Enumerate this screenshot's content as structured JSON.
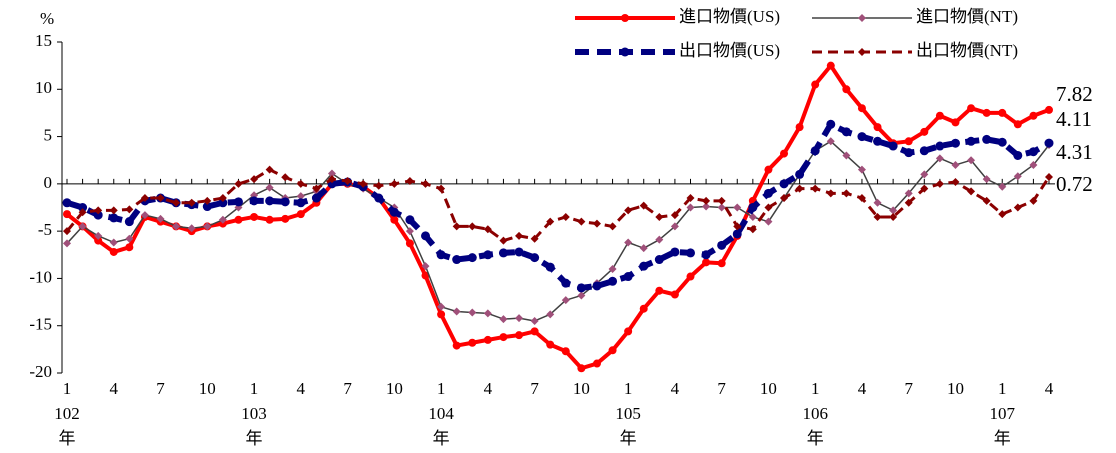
{
  "chart_data": {
    "type": "line",
    "y_label": "%",
    "categories": [
      "1",
      null,
      null,
      "4",
      null,
      null,
      "7",
      null,
      null,
      "10",
      null,
      null,
      "1",
      null,
      null,
      "4",
      null,
      null,
      "7",
      null,
      null,
      "10",
      null,
      null,
      "1",
      null,
      null,
      "4",
      null,
      null,
      "7",
      null,
      null,
      "10",
      null,
      null,
      "1",
      null,
      null,
      "4",
      null,
      null,
      "7",
      null,
      null,
      "10",
      null,
      null,
      "1",
      null,
      null,
      "4",
      null,
      null,
      "7",
      null,
      null,
      "10",
      null,
      null,
      "1",
      null,
      null,
      "4"
    ],
    "years": [
      "102",
      "103",
      "104",
      "105",
      "106",
      "107"
    ],
    "year_unit": "年",
    "ylim": [
      -20,
      15
    ],
    "yticks": [
      -20,
      -15,
      -10,
      -5,
      0,
      5,
      10,
      15
    ],
    "series": [
      {
        "name": "進口物價(US)",
        "color": "#ff0000",
        "marker": "circle",
        "dash": "solid",
        "line_width": 4,
        "values": [
          -3.2,
          -4.5,
          -6,
          -7.2,
          -6.7,
          -3.5,
          -4,
          -4.5,
          -5,
          -4.5,
          -4.2,
          -3.8,
          -3.5,
          -3.8,
          -3.7,
          -3.2,
          -2,
          0,
          0,
          -0.3,
          -1.5,
          -3.8,
          -6.3,
          -9.7,
          -13.8,
          -17.1,
          -16.8,
          -16.5,
          -16.2,
          -16,
          -15.6,
          -17,
          -17.7,
          -19.5,
          -19,
          -17.6,
          -15.6,
          -13.2,
          -11.3,
          -11.7,
          -9.8,
          -8.3,
          -8.4,
          -5.5,
          -1.8,
          1.5,
          3.2,
          6,
          10.5,
          12.5,
          10,
          8,
          6,
          4.3,
          4.5,
          5.5,
          7.2,
          6.5,
          8,
          7.5,
          7.5,
          6.3,
          7.2,
          7.82
        ]
      },
      {
        "name": "進口物價(NT)",
        "color": "#404040",
        "marker_color": "#a0507a",
        "marker": "diamond",
        "dash": "solid",
        "line_width": 1.5,
        "values": [
          -6.3,
          -4.5,
          -5.5,
          -6.2,
          -5.8,
          -3.3,
          -3.7,
          -4.5,
          -4.7,
          -4.5,
          -3.8,
          -2.5,
          -1.2,
          -0.4,
          -1.5,
          -1.3,
          -0.8,
          1.1,
          0,
          -0.5,
          -1.5,
          -2.5,
          -5,
          -8.7,
          -13,
          -13.5,
          -13.6,
          -13.7,
          -14.3,
          -14.2,
          -14.5,
          -13.8,
          -12.3,
          -11.8,
          -10.5,
          -9,
          -6.2,
          -6.8,
          -5.9,
          -4.5,
          -2.5,
          -2.4,
          -2.5,
          -2.5,
          -3.5,
          -4,
          -1.5,
          1,
          3.5,
          4.5,
          3,
          1.5,
          -2,
          -2.8,
          -1,
          1,
          2.7,
          2,
          2.5,
          0.5,
          -0.3,
          0.8,
          2,
          4.11
        ]
      },
      {
        "name": "出口物價(US)",
        "color": "#000080",
        "marker": "circle",
        "dash": "dash",
        "line_width": 6,
        "values": [
          -2,
          -2.5,
          -3.3,
          -3.6,
          -4,
          -1.8,
          -1.5,
          -2,
          -2.2,
          -2.4,
          -2,
          -1.9,
          -1.8,
          -1.8,
          -1.9,
          -2,
          -1.5,
          0,
          0.2,
          -0.3,
          -1.5,
          -3,
          -3.8,
          -5.5,
          -7.5,
          -8,
          -7.8,
          -7.5,
          -7.3,
          -7.2,
          -7.8,
          -8.8,
          -10.5,
          -11,
          -10.8,
          -10.3,
          -9.8,
          -8.7,
          -8,
          -7.2,
          -7.3,
          -7.5,
          -6.5,
          -5.3,
          -2.5,
          -1,
          0,
          1,
          3.5,
          6.3,
          5.5,
          5,
          4.5,
          4,
          3.3,
          3.5,
          4,
          4.3,
          4.5,
          4.7,
          4.4,
          3,
          3.4,
          4.31
        ]
      },
      {
        "name": "出口物價(NT)",
        "color": "#8b0000",
        "marker": "diamond",
        "dash": "dash",
        "line_width": 3,
        "values": [
          -5,
          -3,
          -2.8,
          -2.8,
          -2.7,
          -1.5,
          -1.5,
          -2,
          -2,
          -1.8,
          -1.5,
          0,
          0.5,
          1.5,
          0.7,
          0,
          -0.5,
          0.5,
          0.3,
          0,
          -0.2,
          0,
          0.3,
          0,
          -0.5,
          -4.5,
          -4.5,
          -4.8,
          -6,
          -5.5,
          -5.8,
          -4,
          -3.5,
          -4,
          -4.2,
          -4.5,
          -2.8,
          -2.3,
          -3.5,
          -3.3,
          -1.5,
          -1.8,
          -1.8,
          -4.5,
          -4.8,
          -2.5,
          -1.5,
          -0.5,
          -0.5,
          -1,
          -1,
          -1.5,
          -3.5,
          -3.5,
          -2,
          -0.5,
          0,
          0.2,
          -0.8,
          -1.8,
          -3.2,
          -2.5,
          -1.8,
          0.72
        ]
      }
    ]
  }
}
